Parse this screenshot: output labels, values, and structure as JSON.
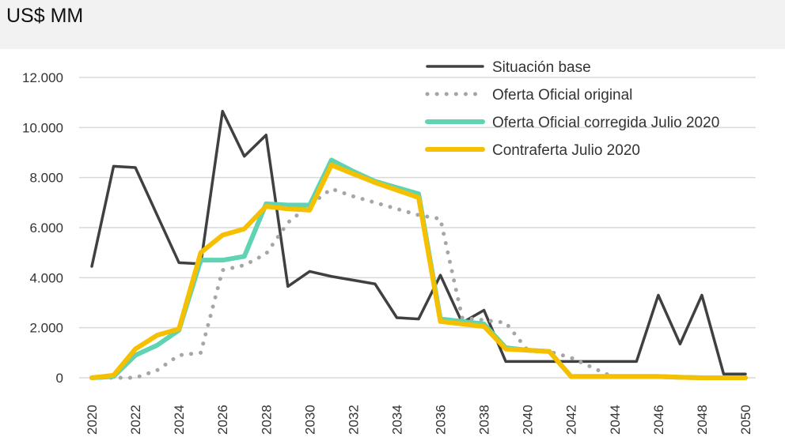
{
  "header": {
    "title": "US$ MM"
  },
  "chart_data": {
    "type": "line",
    "title": "US$ MM",
    "xlabel": "",
    "ylabel": "",
    "ylim": [
      0,
      12000
    ],
    "xlim": [
      2020,
      2050
    ],
    "yticks": [
      "0",
      "2.000",
      "4.000",
      "6.000",
      "8.000",
      "10.000",
      "12.000"
    ],
    "ytick_values": [
      0,
      2000,
      4000,
      6000,
      8000,
      10000,
      12000
    ],
    "xticks": [
      2020,
      2022,
      2024,
      2026,
      2028,
      2030,
      2032,
      2034,
      2036,
      2038,
      2040,
      2042,
      2044,
      2046,
      2048,
      2050
    ],
    "grid": true,
    "legend_position": "top-right",
    "x": [
      2020,
      2021,
      2022,
      2023,
      2024,
      2025,
      2026,
      2027,
      2028,
      2029,
      2030,
      2031,
      2032,
      2033,
      2034,
      2035,
      2036,
      2037,
      2038,
      2039,
      2040,
      2041,
      2042,
      2043,
      2044,
      2045,
      2046,
      2047,
      2048,
      2049,
      2050
    ],
    "series": [
      {
        "name": "Situación base",
        "color": "#404040",
        "style": "solid",
        "values": [
          4450,
          8450,
          8400,
          6500,
          4600,
          4550,
          10650,
          8850,
          9700,
          3650,
          4250,
          4050,
          3900,
          3750,
          2400,
          2350,
          4100,
          2200,
          2700,
          650,
          650,
          650,
          650,
          650,
          650,
          650,
          3300,
          1350,
          3300,
          150,
          150
        ]
      },
      {
        "name": "Oferta Oficial original",
        "color": "#a6a6a6",
        "style": "dotted",
        "values": [
          0,
          0,
          0,
          300,
          900,
          1000,
          4300,
          4500,
          4950,
          6200,
          6900,
          7550,
          7250,
          7000,
          6750,
          6500,
          6350,
          2400,
          2300,
          2200,
          1100,
          1050,
          800,
          400,
          0,
          null,
          null,
          null,
          null,
          null,
          null
        ]
      },
      {
        "name": "Oferta Oficial corregida Julio 2020",
        "color": "#5fd3b3",
        "style": "solid",
        "values": [
          0,
          50,
          900,
          1300,
          1900,
          4700,
          4700,
          4850,
          6950,
          6900,
          6900,
          8700,
          8250,
          7850,
          7600,
          7350,
          2350,
          2250,
          2150,
          1200,
          1100,
          1050,
          50,
          50,
          50,
          50,
          50,
          20,
          0,
          0,
          0
        ]
      },
      {
        "name": "Contraferta Julio 2020",
        "color": "#f5c000",
        "style": "solid",
        "values": [
          0,
          100,
          1150,
          1700,
          1950,
          5000,
          5700,
          5950,
          6850,
          6750,
          6700,
          8500,
          8150,
          7800,
          7500,
          7200,
          2250,
          2150,
          2050,
          1150,
          1100,
          1050,
          50,
          50,
          50,
          50,
          50,
          20,
          0,
          0,
          0
        ]
      }
    ]
  }
}
